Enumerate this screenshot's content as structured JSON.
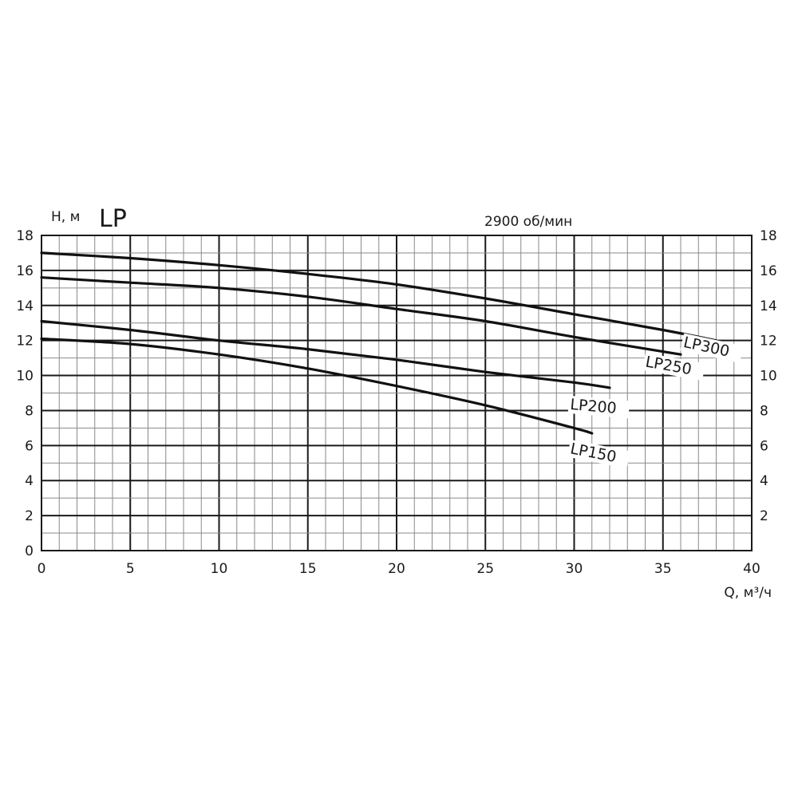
{
  "chart_data": {
    "type": "line",
    "title": "LP",
    "subtitle": "2900 об/мин",
    "xlabel": "Q, м³/ч",
    "ylabel": "H, м",
    "xlim": [
      0,
      40
    ],
    "ylim": [
      0,
      18
    ],
    "x_ticks": [
      0,
      5,
      10,
      15,
      20,
      25,
      30,
      35,
      40
    ],
    "y_ticks_left": [
      0,
      2,
      4,
      6,
      8,
      10,
      12,
      14,
      16,
      18
    ],
    "y_ticks_right": [
      2,
      4,
      6,
      8,
      10,
      12,
      14,
      16,
      18
    ],
    "x_minor_step": 1,
    "y_minor_step": 1,
    "grid": true,
    "legend": "inline labels at curve ends",
    "series": [
      {
        "name": "LP300",
        "x": [
          0,
          5,
          10,
          15,
          20,
          25,
          30,
          35,
          38
        ],
        "y": [
          17.0,
          16.7,
          16.3,
          15.8,
          15.2,
          14.4,
          13.5,
          12.6,
          12.0
        ]
      },
      {
        "name": "LP250",
        "x": [
          0,
          5,
          10,
          15,
          20,
          25,
          30,
          36
        ],
        "y": [
          15.6,
          15.3,
          15.0,
          14.5,
          13.8,
          13.1,
          12.2,
          11.2
        ]
      },
      {
        "name": "LP200",
        "x": [
          0,
          5,
          10,
          15,
          20,
          25,
          30,
          32
        ],
        "y": [
          13.1,
          12.6,
          12.0,
          11.5,
          10.9,
          10.2,
          9.6,
          9.3
        ]
      },
      {
        "name": "LP150",
        "x": [
          0,
          5,
          10,
          15,
          20,
          25,
          30,
          31
        ],
        "y": [
          12.1,
          11.8,
          11.2,
          10.4,
          9.4,
          8.3,
          7.0,
          6.7
        ]
      }
    ]
  }
}
